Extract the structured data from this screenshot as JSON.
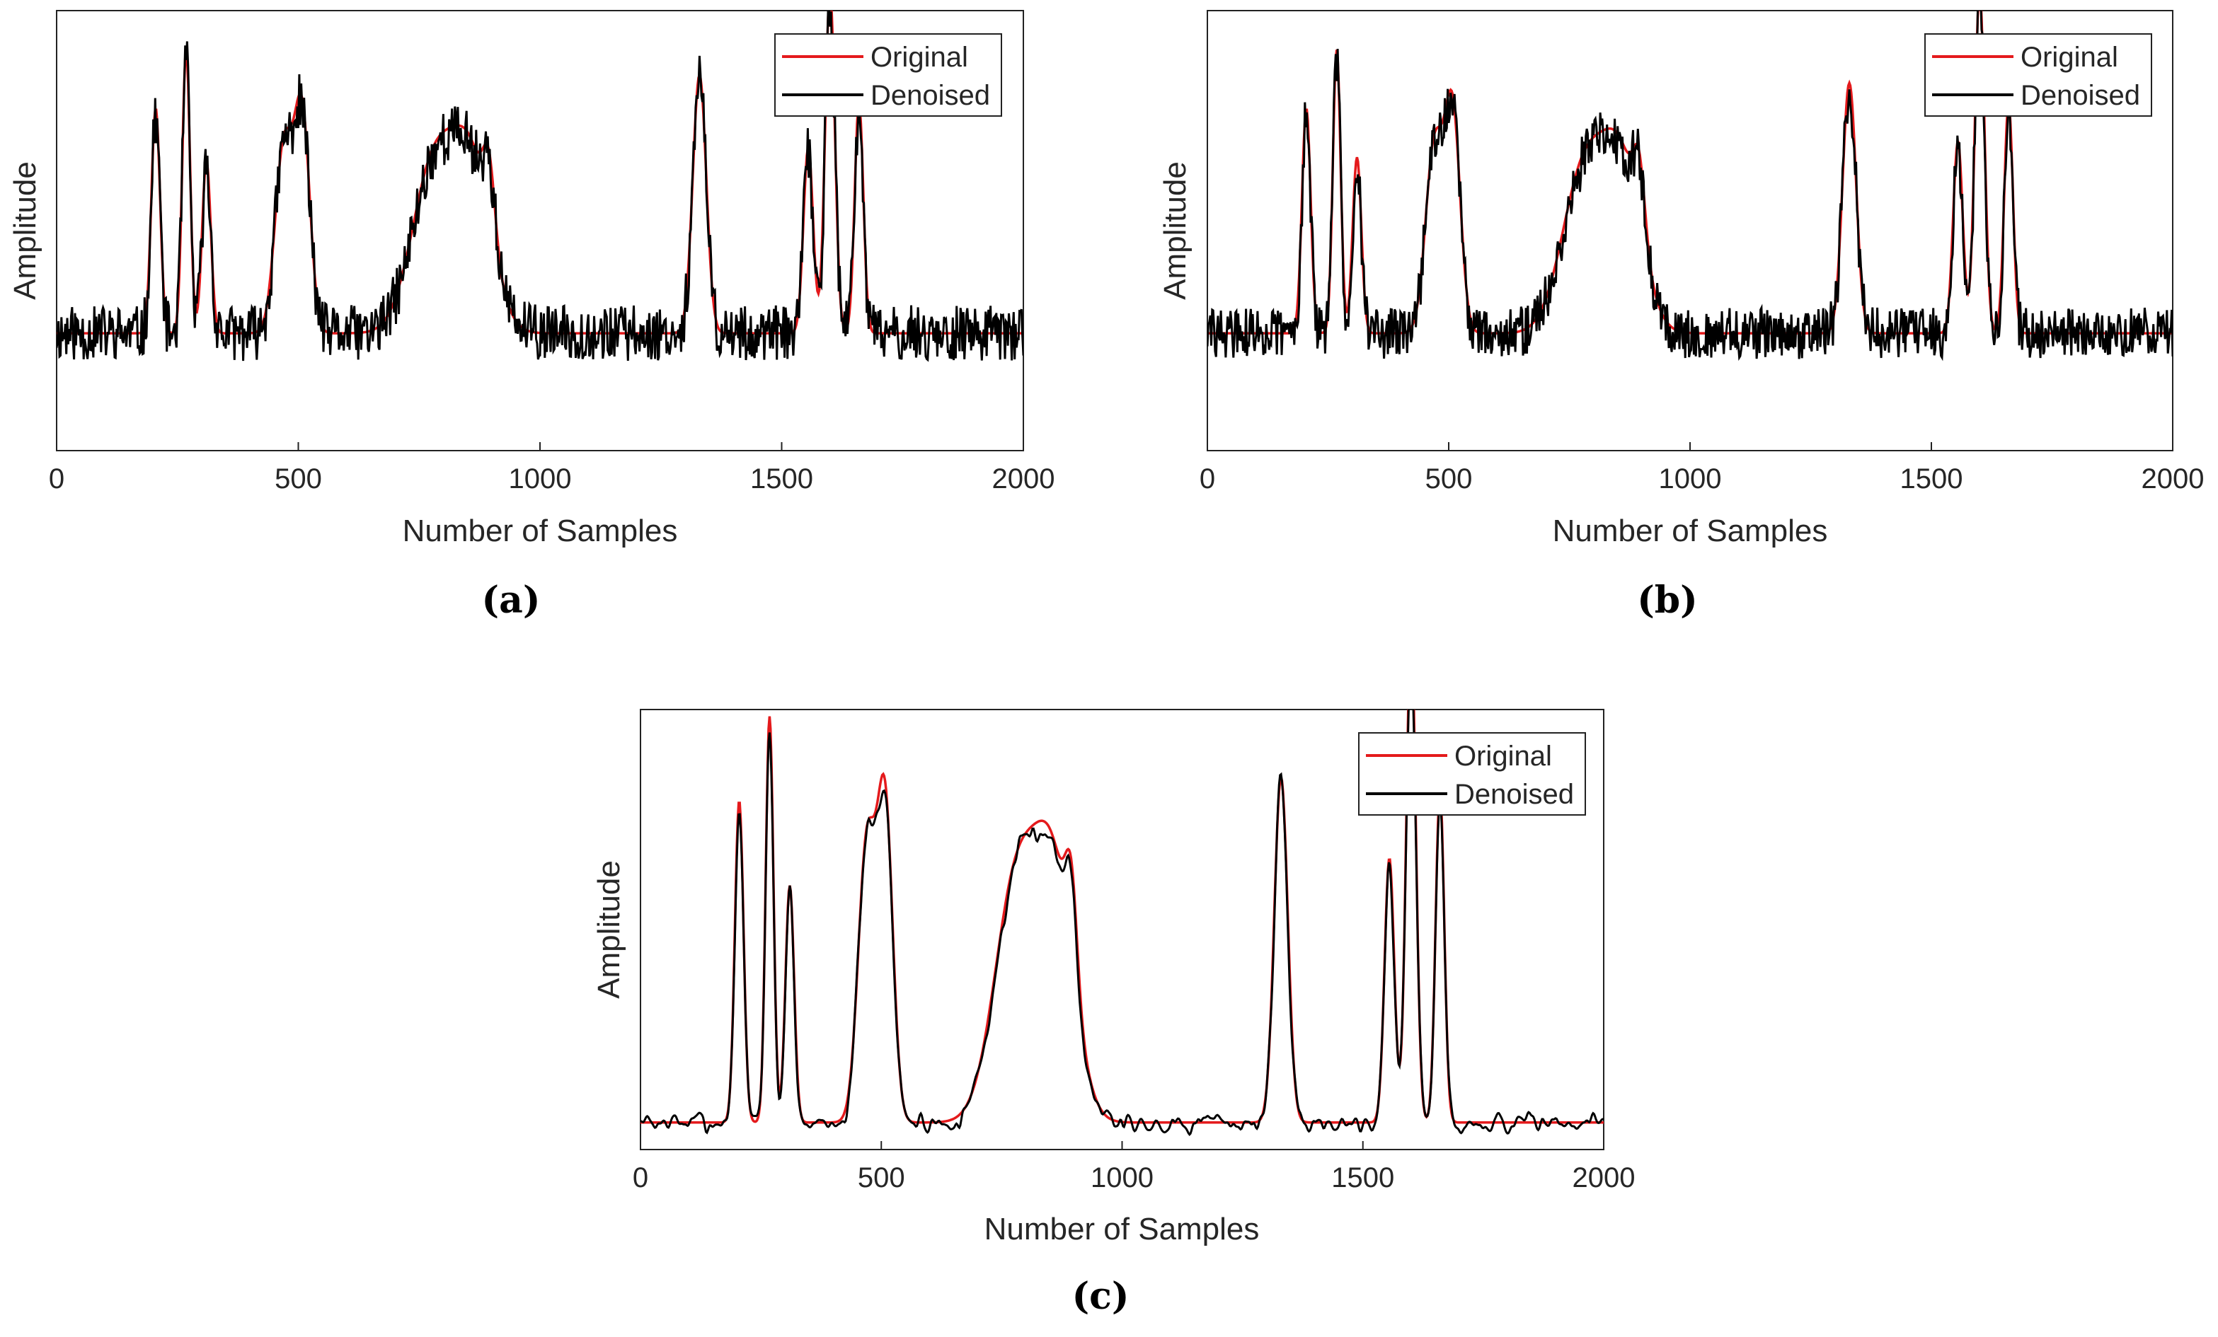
{
  "figure": {
    "colors": {
      "original": "#e41a1c",
      "denoised": "#000000",
      "axis": "#222222",
      "text": "#262626"
    }
  },
  "chart_data": [
    {
      "id": "a",
      "panel_label": "(a)",
      "type": "line",
      "xlabel": "Number of Samples",
      "ylabel": "Amplitude",
      "xlim": [
        0,
        2000
      ],
      "ylim": [
        -0.6,
        1.65
      ],
      "xticks": [
        0,
        500,
        1000,
        1500,
        2000
      ],
      "xtick_labels": [
        "0",
        "500",
        "1000",
        "1500",
        "2000"
      ],
      "grid": false,
      "legend": {
        "position": "top-right",
        "entries": [
          "Original",
          "Denoised"
        ]
      },
      "noise_level": 0.065,
      "smooth_passes": 0,
      "seed": 11,
      "series": [
        {
          "name": "Original",
          "color": "#e41a1c",
          "peaks": [
            {
              "center": 205,
              "amp": 1.15,
              "width": 9
            },
            {
              "center": 268,
              "amp": 1.45,
              "width": 8
            },
            {
              "center": 310,
              "amp": 0.88,
              "width": 9
            },
            {
              "center": 470,
              "amp": 0.95,
              "width": 18
            },
            {
              "center": 508,
              "amp": 1.1,
              "width": 16
            },
            {
              "center": 780,
              "amp": 0.85,
              "width": 45
            },
            {
              "center": 860,
              "amp": 0.8,
              "width": 40
            },
            {
              "center": 895,
              "amp": 0.35,
              "width": 12
            },
            {
              "center": 1330,
              "amp": 1.32,
              "width": 14
            },
            {
              "center": 1555,
              "amp": 0.95,
              "width": 10
            },
            {
              "center": 1600,
              "amp": 1.75,
              "width": 10
            },
            {
              "center": 1660,
              "amp": 1.18,
              "width": 9
            }
          ]
        },
        {
          "name": "Denoised",
          "color": "#000000",
          "based_on": "Original"
        }
      ]
    },
    {
      "id": "b",
      "panel_label": "(b)",
      "type": "line",
      "xlabel": "Number of Samples",
      "ylabel": "Amplitude",
      "xlim": [
        0,
        2000
      ],
      "ylim": [
        -0.6,
        1.65
      ],
      "xticks": [
        0,
        500,
        1000,
        1500,
        2000
      ],
      "xtick_labels": [
        "0",
        "500",
        "1000",
        "1500",
        "2000"
      ],
      "grid": false,
      "legend": {
        "position": "top-right",
        "entries": [
          "Original",
          "Denoised"
        ]
      },
      "noise_level": 0.06,
      "smooth_passes": 0,
      "seed": 29,
      "series": [
        {
          "name": "Original",
          "color": "#e41a1c",
          "peaks": [
            {
              "center": 205,
              "amp": 1.15,
              "width": 9
            },
            {
              "center": 268,
              "amp": 1.45,
              "width": 8
            },
            {
              "center": 310,
              "amp": 0.9,
              "width": 9
            },
            {
              "center": 470,
              "amp": 0.95,
              "width": 18
            },
            {
              "center": 508,
              "amp": 1.12,
              "width": 16
            },
            {
              "center": 780,
              "amp": 0.82,
              "width": 45
            },
            {
              "center": 860,
              "amp": 0.8,
              "width": 40
            },
            {
              "center": 895,
              "amp": 0.35,
              "width": 12
            },
            {
              "center": 1330,
              "amp": 1.28,
              "width": 14
            },
            {
              "center": 1555,
              "amp": 0.98,
              "width": 10
            },
            {
              "center": 1600,
              "amp": 1.75,
              "width": 10
            },
            {
              "center": 1660,
              "amp": 1.18,
              "width": 9
            }
          ]
        },
        {
          "name": "Denoised",
          "color": "#000000",
          "based_on": "Original"
        }
      ]
    },
    {
      "id": "c",
      "panel_label": "(c)",
      "type": "line",
      "xlabel": "Number of Samples",
      "ylabel": "Amplitude",
      "xlim": [
        0,
        2000
      ],
      "ylim": [
        -0.08,
        1.22
      ],
      "xticks": [
        0,
        500,
        1000,
        1500,
        2000
      ],
      "xtick_labels": [
        "0",
        "500",
        "1000",
        "1500",
        "2000"
      ],
      "grid": false,
      "legend": {
        "position": "top-right",
        "entries": [
          "Original",
          "Denoised"
        ]
      },
      "noise_level": 0.022,
      "smooth_passes": 6,
      "seed": 7,
      "series": [
        {
          "name": "Original",
          "color": "#e41a1c",
          "peaks": [
            {
              "center": 205,
              "amp": 0.95,
              "width": 9
            },
            {
              "center": 268,
              "amp": 1.2,
              "width": 8
            },
            {
              "center": 310,
              "amp": 0.7,
              "width": 9
            },
            {
              "center": 470,
              "amp": 0.82,
              "width": 18
            },
            {
              "center": 508,
              "amp": 0.92,
              "width": 16
            },
            {
              "center": 780,
              "amp": 0.7,
              "width": 45
            },
            {
              "center": 860,
              "amp": 0.68,
              "width": 40
            },
            {
              "center": 895,
              "amp": 0.28,
              "width": 12
            },
            {
              "center": 1330,
              "amp": 1.02,
              "width": 14
            },
            {
              "center": 1555,
              "amp": 0.78,
              "width": 10
            },
            {
              "center": 1600,
              "amp": 1.45,
              "width": 10
            },
            {
              "center": 1660,
              "amp": 0.98,
              "width": 9
            }
          ]
        },
        {
          "name": "Denoised",
          "color": "#000000",
          "based_on": "Original"
        }
      ]
    }
  ]
}
